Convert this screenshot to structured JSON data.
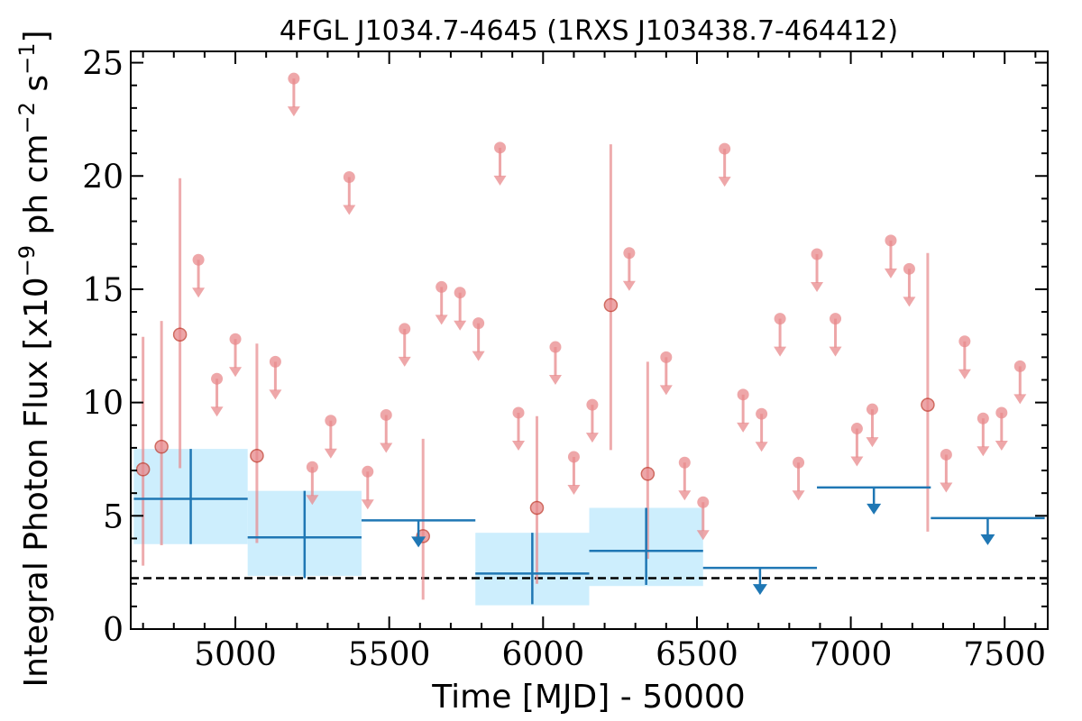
{
  "chart_data": {
    "type": "scatter",
    "title": "4FGL J1034.7-4645 (1RXS J103438.7-464412)",
    "xlabel": "Time [MJD] - 50000",
    "ylabel": "Integral Photon Flux [x10^-9 ph cm^-2 s^-1]",
    "ylabel_parts": {
      "pre": "Integral Photon Flux [x10",
      "exp1": "−9",
      "mid": " ph cm",
      "exp2": "−2",
      "mid2": " s",
      "exp3": "−1",
      "post": "]"
    },
    "xlim": [
      4660,
      7640
    ],
    "ylim": [
      0,
      25.5
    ],
    "x_ticks": [
      5000,
      5500,
      6000,
      6500,
      7000,
      7500
    ],
    "x_tick_labels": [
      "5000",
      "5500",
      "6000",
      "6500",
      "7000",
      "7500"
    ],
    "y_ticks": [
      0,
      5,
      10,
      15,
      20,
      25
    ],
    "y_tick_labels": [
      "0",
      "5",
      "10",
      "15",
      "20",
      "25"
    ],
    "reference_line": {
      "y": 2.25,
      "style": "dashed",
      "color": "#000000"
    },
    "colors": {
      "monthly": "#e8898c",
      "yearly": "#1f77b4",
      "yearly_band": "#cdeefd"
    },
    "series": [
      {
        "kind": "short-bin",
        "detections": [
          {
            "x": 4700,
            "y": 7.05,
            "lo": 2.8,
            "hi": 12.9
          },
          {
            "x": 4760,
            "y": 8.05,
            "lo": 3.7,
            "hi": 13.6
          },
          {
            "x": 4820,
            "y": 13.0,
            "lo": 7.1,
            "hi": 19.9
          },
          {
            "x": 5070,
            "y": 7.65,
            "lo": 3.8,
            "hi": 12.6
          },
          {
            "x": 5610,
            "y": 4.1,
            "lo": 1.3,
            "hi": 8.4
          },
          {
            "x": 5980,
            "y": 5.35,
            "lo": 2.0,
            "hi": 9.4
          },
          {
            "x": 6220,
            "y": 14.3,
            "lo": 7.9,
            "hi": 21.4
          },
          {
            "x": 6340,
            "y": 6.85,
            "lo": 3.1,
            "hi": 11.8
          },
          {
            "x": 7250,
            "y": 9.9,
            "lo": 4.3,
            "hi": 16.6
          }
        ],
        "upper_limits": [
          {
            "x": 4880,
            "y": 16.3
          },
          {
            "x": 4940,
            "y": 11.05
          },
          {
            "x": 5000,
            "y": 12.8
          },
          {
            "x": 5130,
            "y": 11.8
          },
          {
            "x": 5190,
            "y": 24.3
          },
          {
            "x": 5250,
            "y": 7.15
          },
          {
            "x": 5310,
            "y": 9.2
          },
          {
            "x": 5370,
            "y": 19.95
          },
          {
            "x": 5430,
            "y": 6.95
          },
          {
            "x": 5490,
            "y": 9.45
          },
          {
            "x": 5550,
            "y": 13.25
          },
          {
            "x": 5670,
            "y": 15.1
          },
          {
            "x": 5730,
            "y": 14.85
          },
          {
            "x": 5790,
            "y": 13.5
          },
          {
            "x": 5860,
            "y": 21.25
          },
          {
            "x": 5920,
            "y": 9.55
          },
          {
            "x": 6040,
            "y": 12.45
          },
          {
            "x": 6100,
            "y": 7.6
          },
          {
            "x": 6160,
            "y": 9.9
          },
          {
            "x": 6280,
            "y": 16.6
          },
          {
            "x": 6400,
            "y": 12.0
          },
          {
            "x": 6460,
            "y": 7.35
          },
          {
            "x": 6520,
            "y": 5.6
          },
          {
            "x": 6590,
            "y": 21.2
          },
          {
            "x": 6650,
            "y": 10.35
          },
          {
            "x": 6710,
            "y": 9.5
          },
          {
            "x": 6770,
            "y": 13.7
          },
          {
            "x": 6830,
            "y": 7.35
          },
          {
            "x": 6890,
            "y": 16.55
          },
          {
            "x": 6950,
            "y": 13.7
          },
          {
            "x": 7020,
            "y": 8.85
          },
          {
            "x": 7070,
            "y": 9.7
          },
          {
            "x": 7130,
            "y": 17.15
          },
          {
            "x": 7190,
            "y": 15.9
          },
          {
            "x": 7310,
            "y": 7.7
          },
          {
            "x": 7370,
            "y": 12.7
          },
          {
            "x": 7430,
            "y": 9.3
          },
          {
            "x": 7490,
            "y": 9.55
          },
          {
            "x": 7550,
            "y": 11.6
          }
        ]
      },
      {
        "kind": "long-bin",
        "detections": [
          {
            "x0": 4670,
            "x1": 5040,
            "x": 4855,
            "y": 5.75,
            "lo": 3.75,
            "hi": 7.95,
            "ylo": 3.75,
            "yhi": 7.95
          },
          {
            "x0": 5040,
            "x1": 5410,
            "x": 5225,
            "y": 4.05,
            "lo": 2.25,
            "hi": 6.1,
            "ylo": 2.35,
            "yhi": 6.1
          },
          {
            "x0": 5780,
            "x1": 6150,
            "x": 5965,
            "y": 2.45,
            "lo": 1.1,
            "hi": 4.25,
            "ylo": 1.05,
            "yhi": 4.25
          },
          {
            "x0": 6150,
            "x1": 6520,
            "x": 6335,
            "y": 3.45,
            "lo": 1.95,
            "hi": 5.35,
            "ylo": 1.9,
            "yhi": 5.35
          }
        ],
        "upper_limits": [
          {
            "x0": 5410,
            "x1": 5780,
            "x": 5595,
            "y": 4.8
          },
          {
            "x0": 6520,
            "x1": 6890,
            "x": 6705,
            "y": 2.7
          },
          {
            "x0": 6890,
            "x1": 7260,
            "x": 7075,
            "y": 6.25
          },
          {
            "x0": 7260,
            "x1": 7630,
            "x": 7445,
            "y": 4.9
          }
        ]
      }
    ],
    "grid": false,
    "legend": "none"
  }
}
